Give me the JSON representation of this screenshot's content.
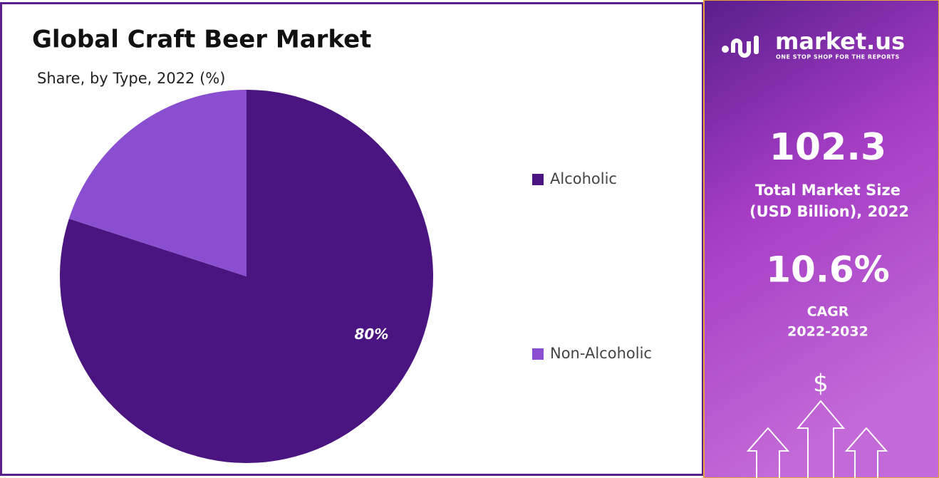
{
  "chart_data": {
    "type": "pie",
    "title": "Global Craft Beer Market",
    "subtitle": "Share, by Type, 2022 (%)",
    "categories": [
      "Alcoholic",
      "Non-Alcoholic"
    ],
    "values": [
      80,
      20
    ],
    "value_labels": [
      "80%",
      null
    ],
    "colors": [
      "#4a1580",
      "#8a4fd0"
    ]
  },
  "sidebar": {
    "brand": "market.us",
    "tagline": "ONE STOP SHOP FOR THE REPORTS",
    "market_size": "102.3",
    "market_size_label_1": "Total Market Size",
    "market_size_label_2": "(USD Billion), 2022",
    "cagr": "10.6%",
    "cagr_label_1": "CAGR",
    "cagr_label_2": "2022-2032",
    "currency_icon": "$"
  }
}
